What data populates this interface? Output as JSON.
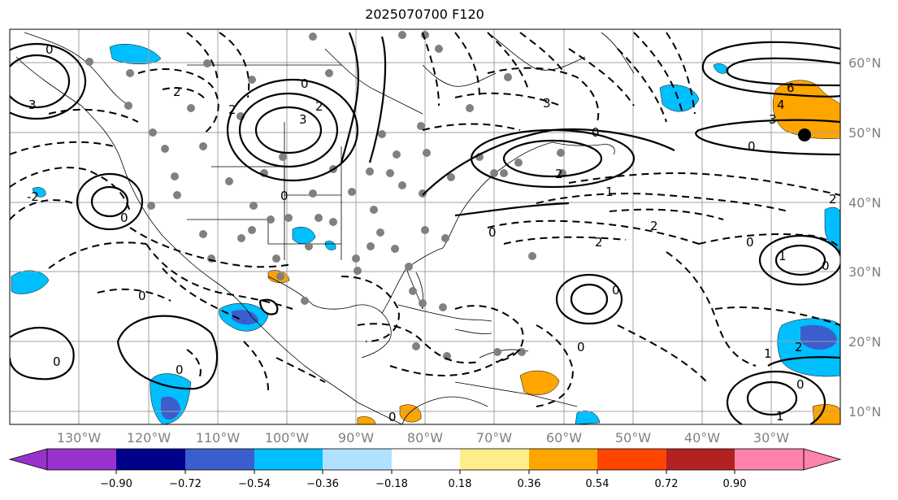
{
  "title": "2025070700 F120",
  "lat_labels": [
    "60°N",
    "50°N",
    "40°N",
    "30°N",
    "20°N",
    "10°N"
  ],
  "lon_labels": [
    "130°W",
    "120°W",
    "110°W",
    "100°W",
    "90°W",
    "80°W",
    "70°W",
    "60°W",
    "50°W",
    "40°W",
    "30°W"
  ],
  "colorbar": {
    "tick_labels": [
      "−0.90",
      "−0.72",
      "−0.54",
      "−0.36",
      "−0.18",
      "0.18",
      "0.36",
      "0.54",
      "0.72",
      "0.90"
    ],
    "colors": [
      "#9932CC",
      "#00008B",
      "#3A5FCD",
      "#00BFFF",
      "#B0E2FF",
      "#FFFFFF",
      "#FFEC8B",
      "#FFA500",
      "#FF4500",
      "#B22222",
      "#FF82AB"
    ]
  },
  "contour_labels": [
    "0",
    "2",
    "-2",
    "3",
    "-3",
    "1",
    "-1",
    "6",
    "4"
  ]
}
